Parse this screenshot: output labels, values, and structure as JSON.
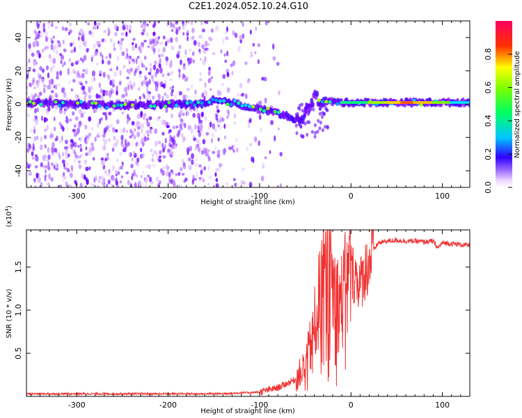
{
  "title": "C2E1.2024.052.10.24.G10",
  "chart_data": [
    {
      "type": "heatmap",
      "name": "spectrogram",
      "xlabel": "Height of straight line (km)",
      "ylabel": "Frequency (Hz)",
      "xlim": [
        -355,
        130
      ],
      "ylim": [
        -50,
        50
      ],
      "xticks": [
        -300,
        -200,
        -100,
        0,
        100
      ],
      "xtick_labels": [
        "-300",
        "-200",
        "-100",
        "0",
        "100"
      ],
      "yticks": [
        -40,
        -20,
        0,
        20,
        40
      ],
      "ytick_labels": [
        "-40",
        "-20",
        "0",
        "20",
        "40"
      ],
      "colorbar": {
        "label": "Normalized spectral amplitude",
        "range": [
          0,
          1
        ],
        "ticks": [
          0.0,
          0.2,
          0.4,
          0.6,
          0.8
        ],
        "tick_labels": [
          "0.0",
          "0.2",
          "0.4",
          "0.6",
          "0.8"
        ]
      },
      "main_band": [
        [
          -355,
          1
        ],
        [
          -300,
          0
        ],
        [
          -250,
          -1
        ],
        [
          -200,
          0
        ],
        [
          -155,
          0
        ],
        [
          -150,
          2
        ],
        [
          -130,
          1
        ],
        [
          -110,
          -2
        ],
        [
          -90,
          -4
        ],
        [
          -70,
          -7
        ],
        [
          -60,
          -11
        ],
        [
          -50,
          -6
        ],
        [
          -40,
          4
        ],
        [
          -30,
          2
        ],
        [
          -10,
          1
        ],
        [
          0,
          1
        ],
        [
          50,
          1
        ],
        [
          100,
          1
        ],
        [
          130,
          1
        ]
      ],
      "grid": false
    },
    {
      "type": "line",
      "name": "snr",
      "xlabel": "Height of straight line (km)",
      "ylabel": "SNR (10 * v/v)",
      "multiplier_label": "(x10",
      "multiplier_exp": "4",
      "multiplier_close": ")",
      "xlim": [
        -355,
        130
      ],
      "ylim": [
        0,
        1.93
      ],
      "xticks": [
        -300,
        -200,
        -100,
        0,
        100
      ],
      "xtick_labels": [
        "-300",
        "-200",
        "-100",
        "0",
        "100"
      ],
      "yticks": [
        0.5,
        1.0,
        1.5
      ],
      "ytick_labels": [
        "0.5",
        "1.0",
        "1.5"
      ],
      "line_color": "#f03232",
      "x": [
        -355,
        -300,
        -250,
        -200,
        -150,
        -120,
        -100,
        -80,
        -60,
        -50,
        -45,
        -40,
        -35,
        -30,
        -25,
        -20,
        -15,
        -10,
        -5,
        0,
        5,
        10,
        15,
        20,
        25,
        30,
        40,
        50,
        60,
        70,
        80,
        90,
        95,
        100,
        110,
        120,
        130
      ],
      "y": [
        0.03,
        0.03,
        0.03,
        0.03,
        0.03,
        0.04,
        0.05,
        0.1,
        0.2,
        0.35,
        0.55,
        0.8,
        1.1,
        1.3,
        1.4,
        1.3,
        1.1,
        1.1,
        1.3,
        1.45,
        1.4,
        1.3,
        1.45,
        1.55,
        1.7,
        1.78,
        1.8,
        1.81,
        1.8,
        1.8,
        1.79,
        1.8,
        1.72,
        1.78,
        1.77,
        1.76,
        1.75
      ],
      "grid": false
    }
  ]
}
